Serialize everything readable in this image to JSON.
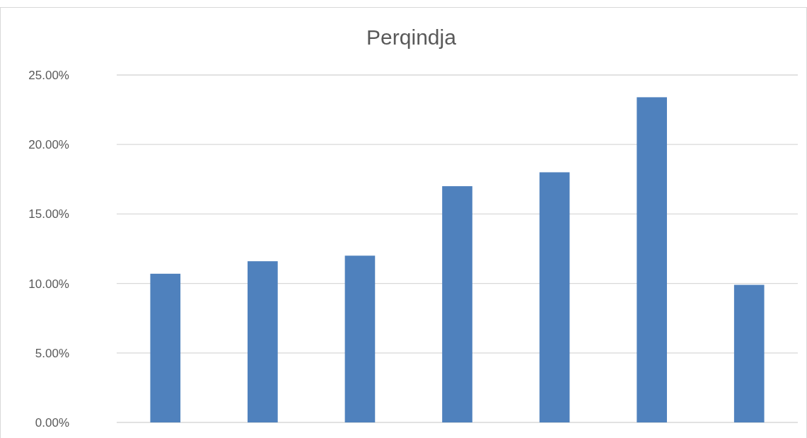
{
  "chart_data": {
    "type": "bar",
    "title": "Perqindja",
    "categories": [
      null,
      null,
      null,
      null,
      null,
      null,
      null
    ],
    "values": [
      10.7,
      11.6,
      12.0,
      17.0,
      18.0,
      23.4,
      9.9
    ],
    "color": "#4f81bd",
    "ylim": [
      0,
      25
    ],
    "yticks": [
      {
        "value": 0,
        "label": "0.00%"
      },
      {
        "value": 5,
        "label": "5.00%"
      },
      {
        "value": 10,
        "label": "10.00%"
      },
      {
        "value": 15,
        "label": "15.00%"
      },
      {
        "value": 20,
        "label": "20.00%"
      },
      {
        "value": 25,
        "label": "25.00%"
      }
    ],
    "grid": "y"
  }
}
